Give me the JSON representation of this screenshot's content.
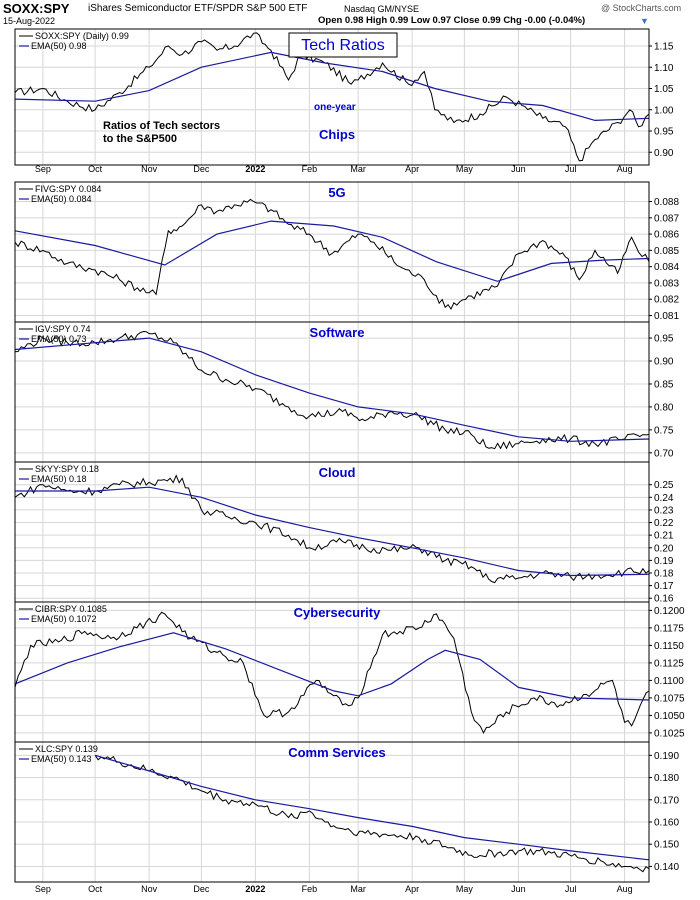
{
  "header": {
    "symbol": "SOXX:SPY",
    "name": "iShares Semiconductor ETF/SPDR S&P 500 ETF",
    "exchange": "Nasdaq GM/NYSE",
    "date": "15-Aug-2022",
    "quote": "Open 0.98  High 0.99  Low 0.97  Close 0.99  Chg -0.00 (-0.04%)",
    "watermark": "@ StockCharts.com"
  },
  "colors": {
    "price": "#000000",
    "ema": "#1a1aa0",
    "title": "#0000cc",
    "grid": "#d6d6d6"
  },
  "annotations": {
    "title_box": "Tech Ratios",
    "note_line1": "Ratios of Tech sectors",
    "note_line2": "to the S&P500",
    "one_year": "one-year"
  },
  "x_axis_labels": [
    "Sep",
    "Oct",
    "Nov",
    "Dec",
    "2022",
    "Feb",
    "Mar",
    "Apr",
    "May",
    "Jun",
    "Jul",
    "Aug"
  ],
  "chart_data": [
    {
      "type": "line",
      "title": "Chips",
      "legend": [
        "SOXX:SPY (Daily) 0.99",
        "EMA(50) 0.98"
      ],
      "series": [
        {
          "name": "SOXX:SPY",
          "x": [
            "2021-08-16",
            "2021-09-01",
            "2021-09-15",
            "2021-10-01",
            "2021-10-15",
            "2021-11-01",
            "2021-11-12",
            "2021-11-20",
            "2021-12-01",
            "2021-12-10",
            "2021-12-20",
            "2021-12-31",
            "2022-01-10",
            "2022-01-20",
            "2022-01-27",
            "2022-02-10",
            "2022-02-25",
            "2022-03-01",
            "2022-03-15",
            "2022-03-30",
            "2022-04-08",
            "2022-04-14",
            "2022-04-25",
            "2022-05-10",
            "2022-05-25",
            "2022-06-03",
            "2022-06-15",
            "2022-06-28",
            "2022-07-06",
            "2022-07-15",
            "2022-07-28",
            "2022-08-04",
            "2022-08-09",
            "2022-08-15"
          ],
          "values": [
            1.04,
            1.05,
            1.02,
            1.0,
            1.04,
            1.1,
            1.15,
            1.13,
            1.16,
            1.14,
            1.15,
            1.18,
            1.14,
            1.07,
            1.13,
            1.11,
            1.06,
            1.07,
            1.11,
            1.06,
            1.09,
            1.0,
            0.97,
            0.99,
            1.03,
            1.01,
            0.98,
            0.96,
            0.88,
            0.93,
            0.97,
            1.0,
            0.96,
            0.99
          ]
        },
        {
          "name": "EMA(50)",
          "x": [
            "2021-08-16",
            "2021-10-01",
            "2021-11-01",
            "2021-12-01",
            "2022-01-10",
            "2022-02-10",
            "2022-03-15",
            "2022-04-14",
            "2022-05-15",
            "2022-06-15",
            "2022-07-15",
            "2022-08-15"
          ],
          "values": [
            1.025,
            1.02,
            1.045,
            1.1,
            1.135,
            1.11,
            1.09,
            1.05,
            1.02,
            1.01,
            0.975,
            0.98
          ]
        }
      ],
      "ylim": [
        0.87,
        1.19
      ],
      "yticks": [
        0.9,
        0.95,
        1.0,
        1.05,
        1.1,
        1.15
      ],
      "ytick_labels": [
        "0.90",
        "0.95",
        "1.00",
        "1.05",
        "1.10",
        "1.15"
      ]
    },
    {
      "type": "line",
      "title": "5G",
      "legend": [
        "FIVG:SPY 0.084",
        "EMA(50) 0.084"
      ],
      "series": [
        {
          "name": "FIVG:SPY",
          "x": [
            "2021-08-16",
            "2021-09-01",
            "2021-09-15",
            "2021-10-01",
            "2021-10-15",
            "2021-11-01",
            "2021-11-05",
            "2021-11-12",
            "2021-11-20",
            "2021-12-01",
            "2021-12-10",
            "2021-12-20",
            "2021-12-31",
            "2022-01-10",
            "2022-01-20",
            "2022-02-01",
            "2022-02-14",
            "2022-03-01",
            "2022-03-10",
            "2022-03-25",
            "2022-04-08",
            "2022-04-20",
            "2022-05-05",
            "2022-05-20",
            "2022-06-01",
            "2022-06-15",
            "2022-06-28",
            "2022-07-06",
            "2022-07-15",
            "2022-07-28",
            "2022-08-05",
            "2022-08-09",
            "2022-08-15"
          ],
          "values": [
            0.0855,
            0.085,
            0.0842,
            0.0838,
            0.0832,
            0.0824,
            0.0823,
            0.0862,
            0.0865,
            0.0878,
            0.0874,
            0.0878,
            0.088,
            0.0875,
            0.0866,
            0.086,
            0.0848,
            0.086,
            0.0855,
            0.084,
            0.0832,
            0.0815,
            0.0822,
            0.0828,
            0.0848,
            0.0856,
            0.0846,
            0.0832,
            0.085,
            0.0836,
            0.0858,
            0.0849,
            0.0843
          ]
        },
        {
          "name": "EMA(50)",
          "x": [
            "2021-08-16",
            "2021-10-01",
            "2021-11-10",
            "2021-12-10",
            "2022-01-10",
            "2022-02-15",
            "2022-03-15",
            "2022-04-15",
            "2022-05-20",
            "2022-06-20",
            "2022-07-20",
            "2022-08-15"
          ],
          "values": [
            0.0862,
            0.0853,
            0.0841,
            0.086,
            0.0868,
            0.0865,
            0.0858,
            0.0843,
            0.0831,
            0.0842,
            0.0844,
            0.0845
          ]
        }
      ],
      "ylim": [
        0.0806,
        0.0892
      ],
      "yticks": [
        0.081,
        0.082,
        0.083,
        0.084,
        0.085,
        0.086,
        0.087,
        0.088
      ],
      "ytick_labels": [
        "0.081",
        "0.082",
        "0.083",
        "0.084",
        "0.085",
        "0.086",
        "0.087",
        "0.088"
      ]
    },
    {
      "type": "line",
      "title": "Software",
      "legend": [
        "IGV:SPY 0.74",
        "EMA(50) 0.73"
      ],
      "series": [
        {
          "name": "IGV:SPY",
          "x": [
            "2021-08-16",
            "2021-09-01",
            "2021-09-15",
            "2021-10-01",
            "2021-10-15",
            "2021-11-01",
            "2021-11-15",
            "2021-12-01",
            "2021-12-15",
            "2022-01-01",
            "2022-01-20",
            "2022-02-01",
            "2022-02-20",
            "2022-03-05",
            "2022-03-20",
            "2022-04-05",
            "2022-04-20",
            "2022-05-05",
            "2022-05-15",
            "2022-06-01",
            "2022-06-15",
            "2022-07-01",
            "2022-07-15",
            "2022-08-01",
            "2022-08-15"
          ],
          "values": [
            0.92,
            0.95,
            0.94,
            0.94,
            0.95,
            0.96,
            0.94,
            0.88,
            0.86,
            0.84,
            0.8,
            0.78,
            0.79,
            0.77,
            0.79,
            0.78,
            0.75,
            0.74,
            0.71,
            0.72,
            0.73,
            0.73,
            0.72,
            0.73,
            0.74
          ]
        },
        {
          "name": "EMA(50)",
          "x": [
            "2021-08-16",
            "2021-10-01",
            "2021-11-01",
            "2021-12-01",
            "2022-01-01",
            "2022-02-01",
            "2022-03-01",
            "2022-04-01",
            "2022-05-01",
            "2022-06-01",
            "2022-07-01",
            "2022-08-15"
          ],
          "values": [
            0.925,
            0.94,
            0.95,
            0.92,
            0.87,
            0.83,
            0.8,
            0.785,
            0.76,
            0.735,
            0.725,
            0.73
          ]
        }
      ],
      "ylim": [
        0.68,
        0.985
      ],
      "yticks": [
        0.7,
        0.75,
        0.8,
        0.85,
        0.9,
        0.95
      ],
      "ytick_labels": [
        "0.70",
        "0.75",
        "0.80",
        "0.85",
        "0.90",
        "0.95"
      ]
    },
    {
      "type": "line",
      "title": "Cloud",
      "legend": [
        "SKYY:SPY 0.18",
        "EMA(50) 0.18"
      ],
      "series": [
        {
          "name": "SKYY:SPY",
          "x": [
            "2021-08-16",
            "2021-09-01",
            "2021-09-15",
            "2021-10-01",
            "2021-10-15",
            "2021-11-01",
            "2021-11-20",
            "2021-12-01",
            "2021-12-15",
            "2022-01-01",
            "2022-01-20",
            "2022-02-01",
            "2022-02-20",
            "2022-03-05",
            "2022-03-20",
            "2022-04-05",
            "2022-04-20",
            "2022-05-05",
            "2022-05-15",
            "2022-06-01",
            "2022-06-15",
            "2022-07-01",
            "2022-07-15",
            "2022-08-01",
            "2022-08-15"
          ],
          "values": [
            0.24,
            0.25,
            0.245,
            0.245,
            0.25,
            0.252,
            0.255,
            0.23,
            0.225,
            0.22,
            0.21,
            0.2,
            0.205,
            0.2,
            0.198,
            0.2,
            0.19,
            0.185,
            0.175,
            0.176,
            0.18,
            0.177,
            0.178,
            0.181,
            0.182
          ]
        },
        {
          "name": "EMA(50)",
          "x": [
            "2021-08-16",
            "2021-10-01",
            "2021-11-01",
            "2021-12-01",
            "2022-01-01",
            "2022-02-01",
            "2022-03-01",
            "2022-04-01",
            "2022-05-01",
            "2022-06-01",
            "2022-07-01",
            "2022-08-15"
          ],
          "values": [
            0.245,
            0.245,
            0.248,
            0.24,
            0.226,
            0.216,
            0.208,
            0.2,
            0.192,
            0.182,
            0.178,
            0.179
          ]
        }
      ],
      "ylim": [
        0.157,
        0.268
      ],
      "yticks": [
        0.16,
        0.17,
        0.18,
        0.19,
        0.2,
        0.21,
        0.22,
        0.23,
        0.24,
        0.25
      ],
      "ytick_labels": [
        "0.16",
        "0.17",
        "0.18",
        "0.19",
        "0.20",
        "0.21",
        "0.22",
        "0.23",
        "0.24",
        "0.25"
      ]
    },
    {
      "type": "line",
      "title": "Cybersecurity",
      "legend": [
        "CIBR:SPY 0.1085",
        "EMA(50) 0.1072"
      ],
      "series": [
        {
          "name": "CIBR:SPY",
          "x": [
            "2021-08-16",
            "2021-08-25",
            "2021-09-10",
            "2021-09-25",
            "2021-10-10",
            "2021-10-25",
            "2021-11-10",
            "2021-11-25",
            "2021-12-10",
            "2021-12-25",
            "2022-01-06",
            "2022-01-20",
            "2022-02-05",
            "2022-02-20",
            "2022-03-01",
            "2022-03-15",
            "2022-03-25",
            "2022-04-05",
            "2022-04-15",
            "2022-04-25",
            "2022-05-05",
            "2022-05-12",
            "2022-05-25",
            "2022-06-10",
            "2022-06-25",
            "2022-07-10",
            "2022-07-25",
            "2022-08-01",
            "2022-08-05",
            "2022-08-15"
          ],
          "values": [
            0.109,
            0.115,
            0.1155,
            0.117,
            0.116,
            0.1175,
            0.1195,
            0.116,
            0.114,
            0.1125,
            0.105,
            0.1055,
            0.11,
            0.1065,
            0.1075,
            0.1165,
            0.117,
            0.1175,
            0.1195,
            0.116,
            0.1055,
            0.1025,
            0.1055,
            0.1075,
            0.1065,
            0.108,
            0.11,
            0.104,
            0.1035,
            0.1085
          ]
        },
        {
          "name": "EMA(50)",
          "x": [
            "2021-08-16",
            "2021-09-15",
            "2021-10-15",
            "2021-11-15",
            "2021-12-15",
            "2022-01-15",
            "2022-02-15",
            "2022-03-01",
            "2022-03-20",
            "2022-04-10",
            "2022-04-20",
            "2022-05-10",
            "2022-06-01",
            "2022-07-01",
            "2022-08-15"
          ],
          "values": [
            0.1095,
            0.1125,
            0.1148,
            0.1168,
            0.1145,
            0.1115,
            0.1085,
            0.1078,
            0.1095,
            0.113,
            0.1143,
            0.113,
            0.109,
            0.1075,
            0.1072
          ]
        }
      ],
      "ylim": [
        0.1012,
        0.1212
      ],
      "yticks": [
        0.1025,
        0.105,
        0.1075,
        0.11,
        0.1125,
        0.115,
        0.1175,
        0.12
      ],
      "ytick_labels": [
        "0.1025",
        "0.1050",
        "0.1075",
        "0.1100",
        "0.1125",
        "0.1150",
        "0.1175",
        "0.1200"
      ]
    },
    {
      "type": "line",
      "title": "Comm Services",
      "legend": [
        "XLC:SPY 0.139",
        "EMA(50) 0.143"
      ],
      "series": [
        {
          "name": "XLC:SPY",
          "x": [
            "2021-10-01",
            "2021-10-15",
            "2021-11-01",
            "2021-11-15",
            "2021-12-01",
            "2021-12-15",
            "2022-01-01",
            "2022-01-20",
            "2022-02-01",
            "2022-02-10",
            "2022-02-20",
            "2022-03-05",
            "2022-03-20",
            "2022-04-05",
            "2022-04-20",
            "2022-05-05",
            "2022-05-20",
            "2022-06-01",
            "2022-06-20",
            "2022-07-05",
            "2022-07-20",
            "2022-08-01",
            "2022-08-15"
          ],
          "values": [
            0.19,
            0.187,
            0.183,
            0.18,
            0.174,
            0.17,
            0.168,
            0.162,
            0.165,
            0.16,
            0.157,
            0.155,
            0.154,
            0.153,
            0.149,
            0.145,
            0.146,
            0.147,
            0.146,
            0.144,
            0.142,
            0.14,
            0.139
          ]
        },
        {
          "name": "EMA(50)",
          "x": [
            "2021-10-01",
            "2021-11-01",
            "2021-12-01",
            "2022-01-01",
            "2022-02-01",
            "2022-03-01",
            "2022-04-01",
            "2022-05-01",
            "2022-06-01",
            "2022-07-01",
            "2022-08-15"
          ],
          "values": [
            0.19,
            0.183,
            0.176,
            0.17,
            0.166,
            0.162,
            0.158,
            0.153,
            0.15,
            0.147,
            0.143
          ]
        }
      ],
      "ylim": [
        0.133,
        0.196
      ],
      "yticks": [
        0.14,
        0.15,
        0.16,
        0.17,
        0.18,
        0.19
      ],
      "ytick_labels": [
        "0.140",
        "0.150",
        "0.160",
        "0.170",
        "0.180",
        "0.190"
      ]
    }
  ]
}
